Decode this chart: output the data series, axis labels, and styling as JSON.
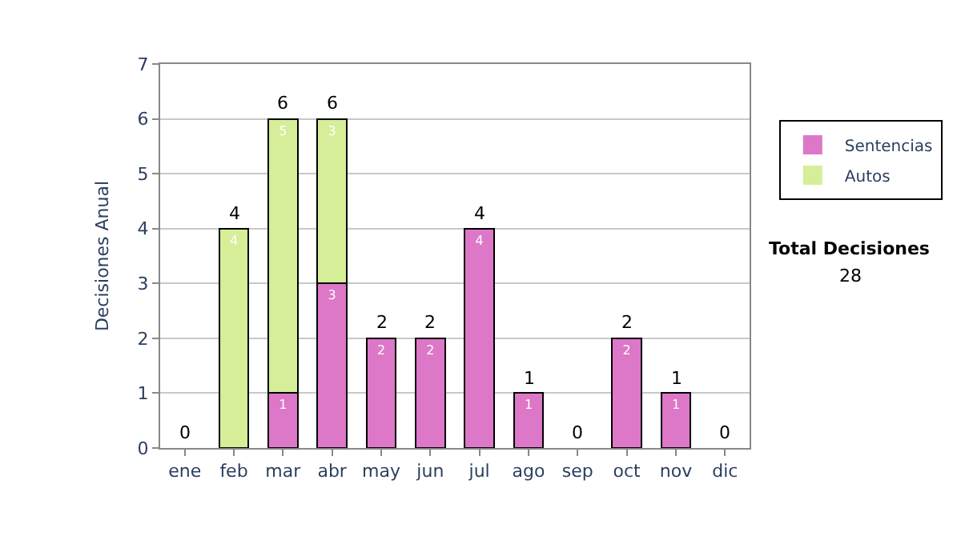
{
  "chart_data": {
    "type": "bar",
    "stacked": true,
    "ylabel": "Decisiones Anual",
    "categories": [
      "ene",
      "feb",
      "mar",
      "abr",
      "may",
      "jun",
      "jul",
      "ago",
      "sep",
      "oct",
      "nov",
      "dic"
    ],
    "series": [
      {
        "name": "Sentencias",
        "color": "#dd77c8",
        "values": [
          0,
          0,
          1,
          3,
          2,
          2,
          4,
          1,
          0,
          2,
          1,
          0
        ],
        "value_labels": [
          null,
          null,
          "1",
          "3",
          "2",
          "2",
          "4",
          "1",
          null,
          "2",
          "1",
          null
        ]
      },
      {
        "name": "Autos",
        "color": "#d6ee98",
        "values": [
          0,
          4,
          5,
          3,
          0,
          0,
          0,
          0,
          0,
          0,
          0,
          0
        ],
        "value_labels": [
          null,
          "4",
          "5",
          "3",
          null,
          null,
          null,
          null,
          null,
          null,
          null,
          null
        ]
      }
    ],
    "totals": [
      "0",
      "4",
      "6",
      "6",
      "2",
      "2",
      "4",
      "1",
      "0",
      "2",
      "1",
      "0"
    ],
    "ylim": [
      0,
      7
    ],
    "yticks": [
      0,
      1,
      2,
      3,
      4,
      5,
      6,
      7
    ],
    "grid": "y",
    "legend": "right",
    "annotations": [
      "Total Decisiones",
      "28"
    ]
  }
}
